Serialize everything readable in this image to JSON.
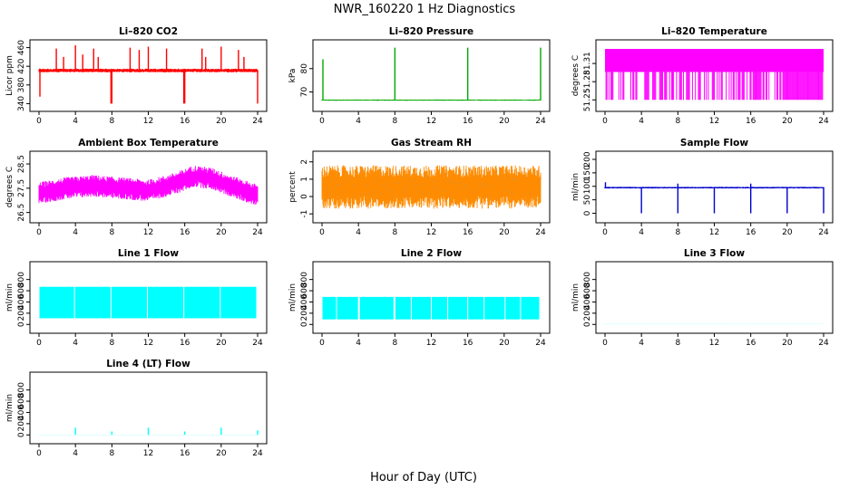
{
  "title": "NWR_160220  1 Hz Diagnostics",
  "xlabel": "Hour of Day (UTC)",
  "chart_data": [
    {
      "id": "co2",
      "type": "line",
      "title": "Li–820 CO2",
      "ylabel": "Licor ppm",
      "color": "#ff0000",
      "xlim": [
        0,
        24
      ],
      "xticks": [
        0,
        4,
        8,
        12,
        16,
        20,
        24
      ],
      "ylim": [
        335,
        465
      ],
      "yticks": [
        340,
        380,
        420,
        460
      ],
      "noise": "band",
      "base": 411,
      "amp": 4,
      "spikes": [
        [
          0.1,
          355
        ],
        [
          1.9,
          458
        ],
        [
          2.7,
          440
        ],
        [
          4.0,
          465
        ],
        [
          4.8,
          445
        ],
        [
          6.0,
          458
        ],
        [
          6.5,
          440
        ],
        [
          7.9,
          340
        ],
        [
          8.0,
          340
        ],
        [
          10.0,
          460
        ],
        [
          11.0,
          455
        ],
        [
          12.0,
          462
        ],
        [
          14.0,
          458
        ],
        [
          15.9,
          340
        ],
        [
          16.0,
          340
        ],
        [
          17.9,
          458
        ],
        [
          18.3,
          440
        ],
        [
          20.0,
          462
        ],
        [
          21.9,
          455
        ],
        [
          22.5,
          440
        ],
        [
          24.0,
          340
        ]
      ],
      "series": [
        {
          "name": "",
          "values": []
        }
      ]
    },
    {
      "id": "press",
      "type": "line",
      "title": "Li–820 Pressure",
      "ylabel": "kPa",
      "color": "#00aa00",
      "xlim": [
        0,
        24
      ],
      "xticks": [
        0,
        4,
        8,
        12,
        16,
        20,
        24
      ],
      "ylim": [
        64,
        90
      ],
      "yticks": [
        70,
        80
      ],
      "noise": "flat",
      "base": 66.5,
      "amp": 0.25,
      "spikes": [
        [
          0.1,
          84
        ],
        [
          8.0,
          89
        ],
        [
          16.0,
          89
        ],
        [
          24.0,
          89
        ]
      ],
      "series": [
        {
          "name": "",
          "values": []
        }
      ]
    },
    {
      "id": "ltemp",
      "type": "line",
      "title": "Li–820 Temperature",
      "ylabel": "degrees C",
      "color": "#ff00ff",
      "xlim": [
        0,
        24
      ],
      "xticks": [
        0,
        4,
        8,
        12,
        16,
        20,
        24
      ],
      "ylim": [
        51.24,
        51.34
      ],
      "yticks": [
        51.25,
        51.28,
        51.31
      ],
      "noise": "toggle",
      "base": 51.296,
      "top": 51.334,
      "low": 51.25,
      "series": [
        {
          "name": "",
          "values": []
        }
      ]
    },
    {
      "id": "abox",
      "type": "line",
      "title": "Ambient Box Temperature",
      "ylabel": "degrees C",
      "color": "#ff00ff",
      "xlim": [
        0,
        24
      ],
      "xticks": [
        0,
        4,
        8,
        12,
        16,
        20,
        24
      ],
      "ylim": [
        26.3,
        28.8
      ],
      "yticks": [
        26.5,
        27.5,
        28.5
      ],
      "noise": "trend",
      "points": [
        [
          0,
          27.3
        ],
        [
          3,
          27.5
        ],
        [
          6,
          27.6
        ],
        [
          9,
          27.5
        ],
        [
          12,
          27.4
        ],
        [
          15,
          27.7
        ],
        [
          17,
          28.0
        ],
        [
          19,
          27.9
        ],
        [
          21,
          27.6
        ],
        [
          24,
          27.2
        ]
      ],
      "amp": 0.45,
      "series": [
        {
          "name": "",
          "values": []
        }
      ]
    },
    {
      "id": "rh",
      "type": "line",
      "title": "Gas Stream RH",
      "ylabel": "percent",
      "color": "#ff8c00",
      "xlim": [
        0,
        24
      ],
      "xticks": [
        0,
        4,
        8,
        12,
        16,
        20,
        24
      ],
      "ylim": [
        -1.2,
        2.3
      ],
      "yticks": [
        -1.0,
        0.0,
        1.0,
        2.0
      ],
      "noise": "band",
      "base": 0.55,
      "amp": 1.25,
      "overlay": "#999999",
      "series": [
        {
          "name": "",
          "values": []
        }
      ]
    },
    {
      "id": "sflow",
      "type": "line",
      "title": "Sample Flow",
      "ylabel": "ml/min",
      "color": "#0000cc",
      "xlim": [
        0,
        24
      ],
      "xticks": [
        0,
        4,
        8,
        12,
        16,
        20,
        24
      ],
      "ylim": [
        -15,
        210
      ],
      "yticks": [
        0,
        50,
        100,
        150,
        200
      ],
      "noise": "flat",
      "base": 95,
      "amp": 3,
      "spikes": [
        [
          0.05,
          115
        ],
        [
          4.0,
          0
        ],
        [
          8.0,
          0
        ],
        [
          8.0,
          110
        ],
        [
          12.0,
          0
        ],
        [
          16.0,
          0
        ],
        [
          16.0,
          110
        ],
        [
          20.0,
          0
        ],
        [
          24.0,
          0
        ]
      ],
      "series": [
        {
          "name": "",
          "values": []
        }
      ]
    },
    {
      "id": "l1",
      "type": "line",
      "title": "Line 1 Flow",
      "ylabel": "ml/min",
      "color": "#00ffff",
      "xlim": [
        0,
        24
      ],
      "xticks": [
        0,
        4,
        8,
        12,
        16,
        20,
        24
      ],
      "ylim": [
        -60,
        1020
      ],
      "yticks": [
        0,
        200,
        400,
        600,
        800
      ],
      "noise": "block",
      "base": 110,
      "top": 670,
      "gaps": [
        3.9,
        7.9,
        11.9,
        15.9,
        19.9,
        23.9
      ],
      "series": [
        {
          "name": "",
          "values": []
        }
      ]
    },
    {
      "id": "l2",
      "type": "line",
      "title": "Line 2 Flow",
      "ylabel": "ml/min",
      "color": "#00ffff",
      "xlim": [
        0,
        24
      ],
      "xticks": [
        0,
        4,
        8,
        12,
        16,
        20,
        24
      ],
      "ylim": [
        -60,
        1020
      ],
      "yticks": [
        0,
        200,
        400,
        600,
        800
      ],
      "noise": "block",
      "base": 90,
      "top": 490,
      "gaps": [
        1.6,
        4.0,
        4.1,
        7.9,
        8.0,
        9.8,
        12.0,
        13.8,
        16.0,
        17.8,
        20.1,
        21.8,
        23.9
      ],
      "series": [
        {
          "name": "",
          "values": []
        }
      ]
    },
    {
      "id": "l3",
      "type": "line",
      "title": "Line 3 Flow",
      "ylabel": "ml/min",
      "color": "#00ffff",
      "xlim": [
        0,
        24
      ],
      "xticks": [
        0,
        4,
        8,
        12,
        16,
        20,
        24
      ],
      "ylim": [
        -60,
        1020
      ],
      "yticks": [
        0,
        200,
        400,
        600,
        800
      ],
      "noise": "flat",
      "base": 5,
      "amp": 1,
      "series": [
        {
          "name": "",
          "values": []
        }
      ]
    },
    {
      "id": "l4",
      "type": "line",
      "title": "Line 4 (LT) Flow",
      "ylabel": "ml/min",
      "color": "#00ffff",
      "xlim": [
        0,
        24
      ],
      "xticks": [
        0,
        4,
        8,
        12,
        16,
        20,
        24
      ],
      "ylim": [
        -60,
        1020
      ],
      "yticks": [
        0,
        200,
        400,
        600,
        800
      ],
      "noise": "flat",
      "base": 3,
      "amp": 1,
      "spikes": [
        [
          4.0,
          130
        ],
        [
          8.0,
          60
        ],
        [
          12.0,
          130
        ],
        [
          16.0,
          60
        ],
        [
          20.0,
          130
        ],
        [
          24.0,
          80
        ]
      ],
      "series": [
        {
          "name": "",
          "values": []
        }
      ]
    }
  ]
}
